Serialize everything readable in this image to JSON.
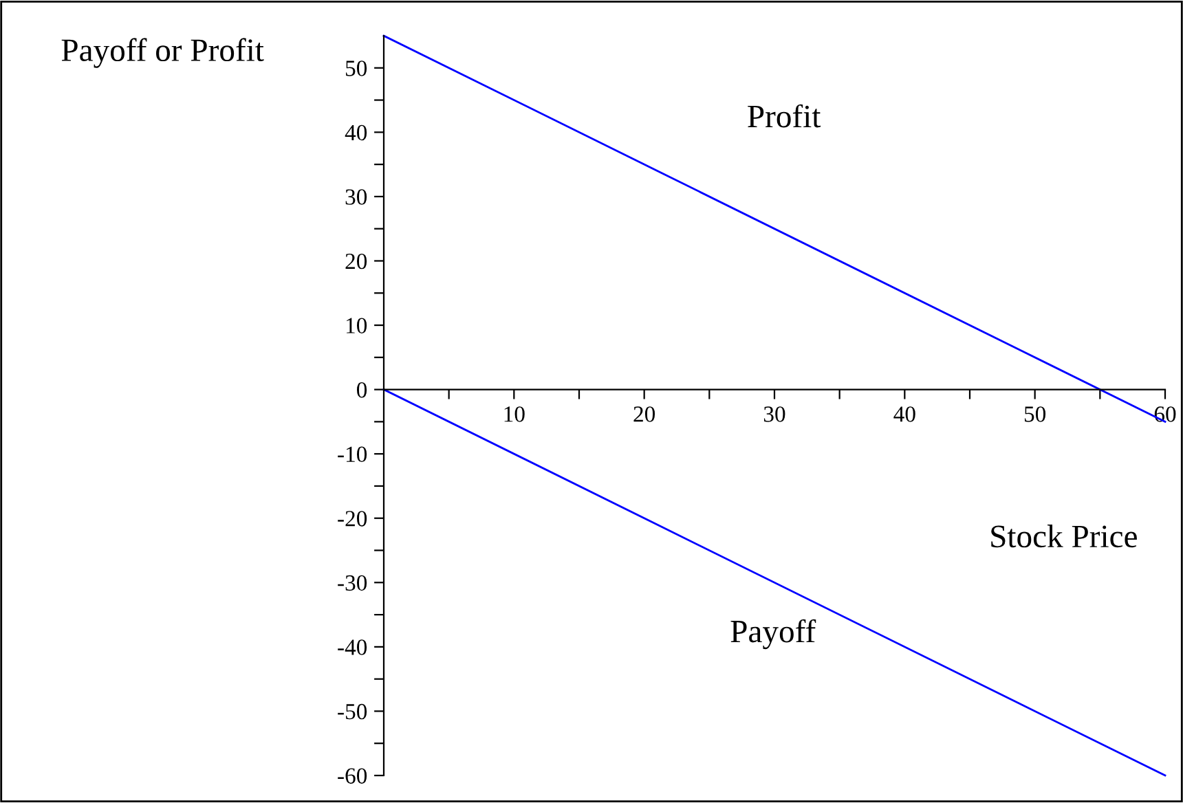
{
  "chart_data": {
    "type": "line",
    "xlabel": "Stock Price",
    "ylabel": "Payoff or Profit",
    "x": [
      0,
      60
    ],
    "series": [
      {
        "name": "Profit",
        "color": "#0000ff",
        "values": [
          55,
          -5
        ]
      },
      {
        "name": "Payoff",
        "color": "#0000ff",
        "values": [
          0,
          -60
        ]
      }
    ],
    "xlim": [
      0,
      60
    ],
    "ylim": [
      -60,
      55
    ],
    "xticks": [
      {
        "value": 5,
        "label": null
      },
      10,
      {
        "value": 15,
        "label": null
      },
      20,
      {
        "value": 25,
        "label": null
      },
      30,
      {
        "value": 35,
        "label": null
      },
      40,
      {
        "value": 45,
        "label": null
      },
      50,
      {
        "value": 55,
        "label": null
      },
      60
    ],
    "yticks": [
      -60,
      {
        "value": -55,
        "label": null
      },
      -50,
      {
        "value": -45,
        "label": null
      },
      -40,
      {
        "value": -35,
        "label": null
      },
      -30,
      {
        "value": -25,
        "label": null
      },
      -20,
      {
        "value": -15,
        "label": null
      },
      -10,
      {
        "value": -5,
        "label": null
      },
      0,
      {
        "value": 5,
        "label": null
      },
      10,
      {
        "value": 15,
        "label": null
      },
      20,
      {
        "value": 25,
        "label": null
      },
      30,
      {
        "value": 35,
        "label": null
      },
      40,
      {
        "value": 45,
        "label": null
      },
      50
    ],
    "grid": false,
    "legend": false,
    "marker": "none",
    "line_style": "solid"
  }
}
